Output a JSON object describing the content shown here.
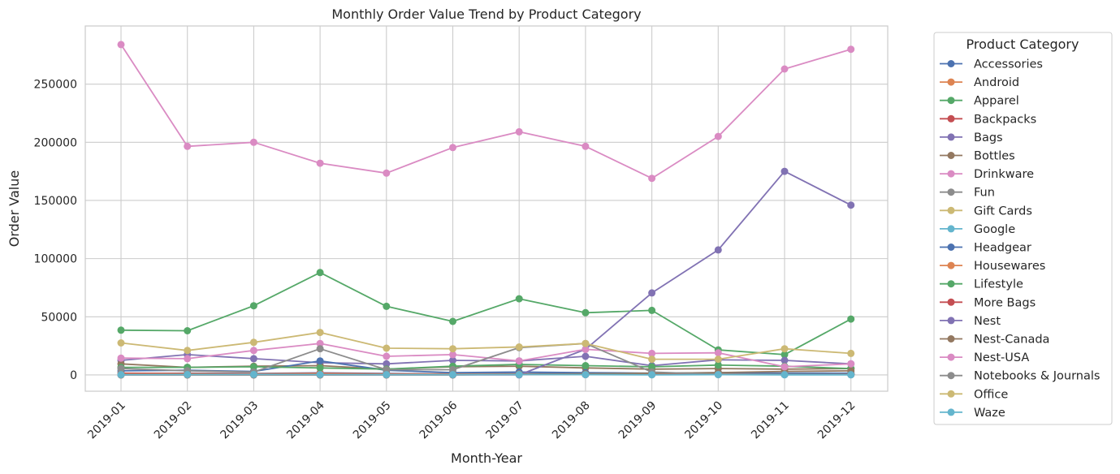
{
  "chart_data": {
    "type": "line",
    "title": "Monthly Order Value Trend by Product Category",
    "xlabel": "Month-Year",
    "ylabel": "Order Value",
    "ylim": [
      -14000,
      300000
    ],
    "yticks": [
      0,
      50000,
      100000,
      150000,
      200000,
      250000
    ],
    "grid": true,
    "legend_title": "Product Category",
    "legend_position": "outside-right",
    "categories": [
      "2019-01",
      "2019-02",
      "2019-03",
      "2019-04",
      "2019-05",
      "2019-06",
      "2019-07",
      "2019-08",
      "2019-09",
      "2019-10",
      "2019-11",
      "2019-12"
    ],
    "series": [
      {
        "name": "Accessories",
        "color": "#4c72b0",
        "values": [
          1000,
          1500,
          1200,
          1800,
          1200,
          900,
          1100,
          1000,
          800,
          900,
          700,
          800
        ]
      },
      {
        "name": "Android",
        "color": "#dd8452",
        "values": [
          600,
          700,
          900,
          700,
          600,
          500,
          600,
          500,
          400,
          500,
          300,
          400
        ]
      },
      {
        "name": "Apparel",
        "color": "#55a868",
        "values": [
          38500,
          38000,
          59500,
          88000,
          59000,
          46000,
          65500,
          53500,
          55500,
          21500,
          17500,
          48000
        ]
      },
      {
        "name": "Backpacks",
        "color": "#c44e52",
        "values": [
          1500,
          1200,
          1000,
          1500,
          900,
          800,
          800,
          700,
          600,
          700,
          500,
          400
        ]
      },
      {
        "name": "Bags",
        "color": "#8172b3",
        "values": [
          12500,
          17500,
          14000,
          10500,
          9500,
          12500,
          12000,
          16000,
          8000,
          13000,
          12500,
          9500
        ]
      },
      {
        "name": "Bottles",
        "color": "#937860",
        "values": [
          9500,
          6500,
          7500,
          8000,
          5000,
          7000,
          7500,
          6000,
          5000,
          5500,
          5000,
          5500
        ]
      },
      {
        "name": "Drinkware",
        "color": "#da8bc3",
        "values": [
          284000,
          196500,
          200000,
          182000,
          173500,
          195500,
          209000,
          196500,
          169000,
          205000,
          263000,
          280000
        ]
      },
      {
        "name": "Fun",
        "color": "#8c8c8c",
        "values": [
          500,
          400,
          600,
          500,
          400,
          300,
          400,
          300,
          300,
          400,
          300,
          200
        ]
      },
      {
        "name": "Gift Cards",
        "color": "#ccb974",
        "values": [
          700,
          600,
          800,
          900,
          700,
          600,
          700,
          500,
          400,
          500,
          400,
          300
        ]
      },
      {
        "name": "Google",
        "color": "#64b5cd",
        "values": [
          400,
          500,
          600,
          500,
          400,
          300,
          400,
          300,
          200,
          300,
          200,
          200
        ]
      },
      {
        "name": "Headgear",
        "color": "#4c72b0",
        "values": [
          3500,
          4000,
          3000,
          12000,
          4000,
          2000,
          2500,
          2000,
          1500,
          2000,
          1500,
          1500
        ]
      },
      {
        "name": "Housewares",
        "color": "#dd8452",
        "values": [
          800,
          900,
          700,
          800,
          700,
          600,
          700,
          600,
          500,
          600,
          400,
          500
        ]
      },
      {
        "name": "Lifestyle",
        "color": "#55a868",
        "values": [
          6500,
          6500,
          7000,
          6000,
          5000,
          7500,
          9000,
          8000,
          7000,
          8500,
          7500,
          5500
        ]
      },
      {
        "name": "More Bags",
        "color": "#c44e52",
        "values": [
          300,
          400,
          500,
          400,
          300,
          200,
          300,
          200,
          200,
          300,
          200,
          200
        ]
      },
      {
        "name": "Nest",
        "color": "#8172b3",
        "values": [
          0,
          0,
          0,
          0,
          0,
          0,
          0,
          22000,
          70500,
          107500,
          175000,
          146000
        ]
      },
      {
        "name": "Nest-Canada",
        "color": "#937860",
        "values": [
          0,
          0,
          0,
          0,
          0,
          0,
          500,
          1000,
          1500,
          2000,
          3000,
          3500
        ]
      },
      {
        "name": "Nest-USA",
        "color": "#da8bc3",
        "values": [
          14500,
          14000,
          21000,
          27000,
          16000,
          17500,
          12000,
          22000,
          18500,
          19000,
          7000,
          9500
        ]
      },
      {
        "name": "Notebooks & Journals",
        "color": "#8c8c8c",
        "values": [
          5500,
          3500,
          2500,
          22500,
          4500,
          4500,
          23500,
          27000,
          2500,
          500,
          500,
          300
        ]
      },
      {
        "name": "Office",
        "color": "#ccb974",
        "values": [
          27500,
          21000,
          28000,
          36500,
          23000,
          22500,
          24000,
          27000,
          13500,
          13500,
          22500,
          18500
        ]
      },
      {
        "name": "Waze",
        "color": "#64b5cd",
        "values": [
          200,
          300,
          400,
          300,
          200,
          200,
          300,
          200,
          100,
          200,
          100,
          100
        ]
      }
    ]
  }
}
